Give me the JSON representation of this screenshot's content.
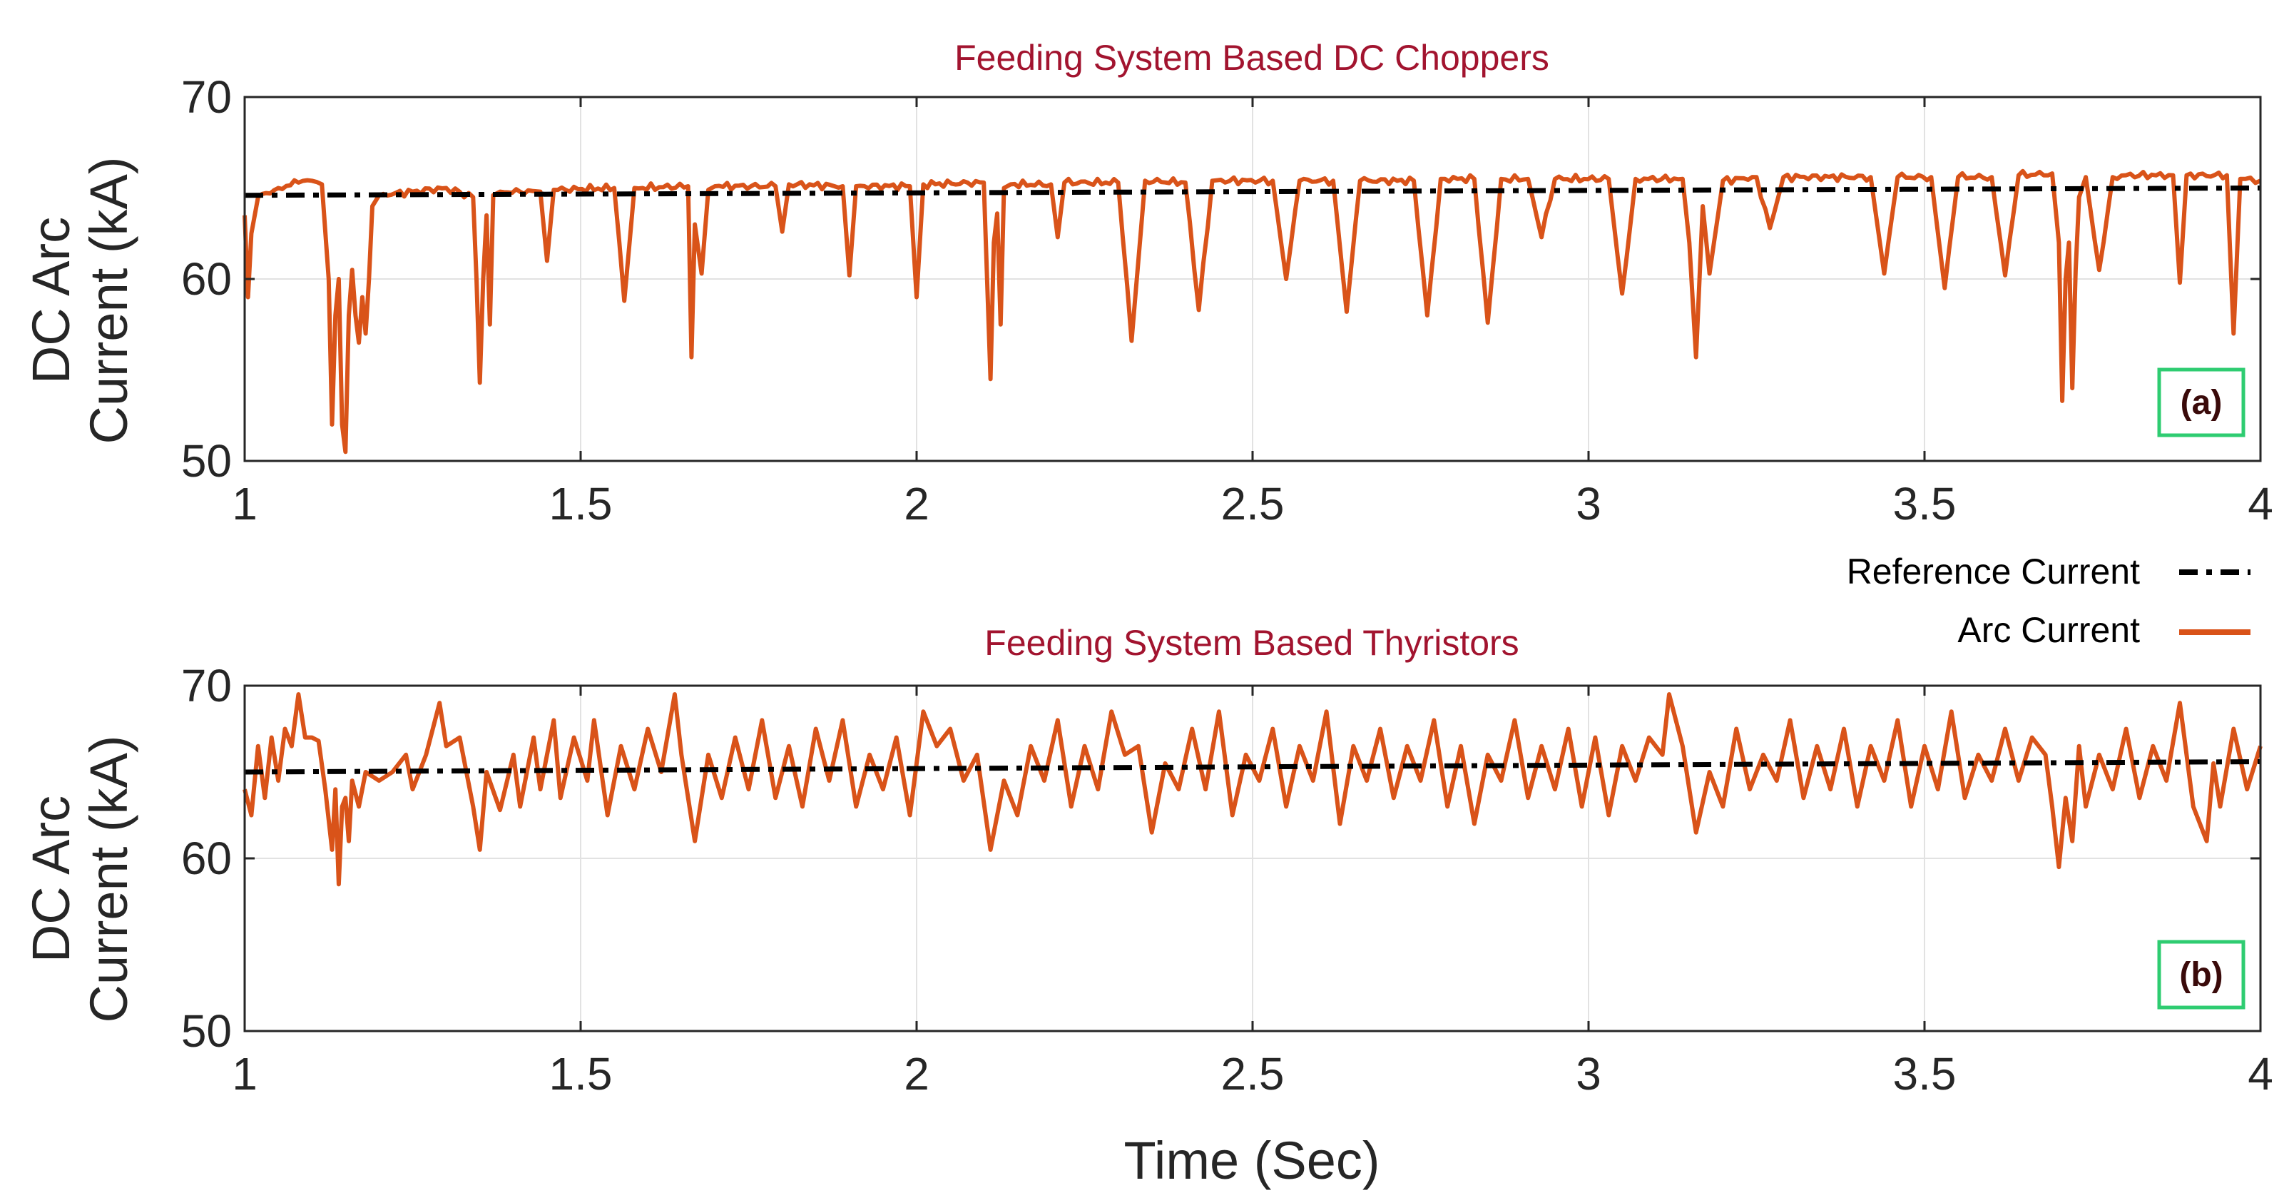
{
  "chart_data": [
    {
      "type": "line",
      "title": "Feeding System Based DC Choppers",
      "xlabel": "",
      "ylabel": "DC Arc Current (kA)",
      "ylabel_lines": [
        "DC Arc",
        "Current (kA)"
      ],
      "xlim": [
        1,
        4
      ],
      "ylim": [
        50,
        70
      ],
      "xticks": [
        1,
        1.5,
        2,
        2.5,
        3,
        3.5,
        4
      ],
      "xtick_labels": [
        "1",
        "1.5",
        "2",
        "2.5",
        "3",
        "3.5",
        "4"
      ],
      "yticks": [
        50,
        60,
        70
      ],
      "ytick_labels": [
        "50",
        "60",
        "70"
      ],
      "grid": true,
      "panel_label": "(a)",
      "series": [
        {
          "name": "Reference Current",
          "color": "#000000",
          "style": "dash-dot",
          "x": [
            1,
            4
          ],
          "y": [
            64.6,
            65.0
          ]
        },
        {
          "name": "Arc Current",
          "color": "#d95319",
          "style": "solid",
          "baseline_start": 64.5,
          "baseline_end": 65.7,
          "x": [
            1.0,
            1.005,
            1.01,
            1.02,
            1.05,
            1.08,
            1.1,
            1.115,
            1.125,
            1.13,
            1.135,
            1.14,
            1.145,
            1.15,
            1.155,
            1.16,
            1.165,
            1.17,
            1.175,
            1.18,
            1.185,
            1.19,
            1.2,
            1.25,
            1.3,
            1.34,
            1.345,
            1.35,
            1.355,
            1.36,
            1.365,
            1.37,
            1.38,
            1.44,
            1.45,
            1.46,
            1.55,
            1.565,
            1.58,
            1.66,
            1.665,
            1.67,
            1.68,
            1.69,
            1.7,
            1.79,
            1.8,
            1.81,
            1.89,
            1.9,
            1.91,
            1.99,
            2.0,
            2.01,
            2.1,
            2.11,
            2.115,
            2.12,
            2.125,
            2.13,
            2.14,
            2.2,
            2.21,
            2.22,
            2.3,
            2.32,
            2.34,
            2.4,
            2.42,
            2.44,
            2.53,
            2.55,
            2.57,
            2.62,
            2.64,
            2.66,
            2.74,
            2.76,
            2.78,
            2.83,
            2.85,
            2.87,
            2.91,
            2.93,
            2.95,
            3.03,
            3.05,
            3.07,
            3.14,
            3.15,
            3.16,
            3.17,
            3.18,
            3.2,
            3.25,
            3.27,
            3.29,
            3.42,
            3.44,
            3.46,
            3.51,
            3.53,
            3.55,
            3.6,
            3.62,
            3.64,
            3.69,
            3.7,
            3.705,
            3.71,
            3.715,
            3.72,
            3.725,
            3.73,
            3.74,
            3.76,
            3.78,
            3.8,
            3.87,
            3.88,
            3.89,
            3.95,
            3.96,
            3.97,
            4.0
          ],
          "y": [
            63.5,
            59.0,
            62.5,
            64.5,
            65.0,
            65.3,
            65.4,
            65.2,
            60.0,
            52.0,
            58.0,
            60.0,
            52.0,
            50.5,
            58.0,
            60.5,
            58.0,
            56.5,
            59.0,
            57.0,
            60.0,
            64.0,
            64.6,
            64.8,
            65.0,
            64.5,
            60.0,
            54.3,
            60.0,
            63.5,
            57.5,
            64.6,
            64.8,
            64.8,
            61.0,
            64.9,
            65.0,
            58.8,
            65.0,
            65.1,
            55.7,
            63.0,
            60.3,
            64.9,
            65.1,
            65.1,
            62.6,
            65.2,
            65.1,
            60.2,
            65.1,
            65.1,
            59.0,
            65.2,
            65.3,
            54.5,
            62.0,
            63.6,
            57.5,
            65.0,
            65.2,
            65.2,
            62.3,
            65.3,
            65.3,
            56.6,
            65.4,
            65.3,
            58.3,
            65.4,
            65.4,
            60.0,
            65.4,
            65.4,
            58.2,
            65.4,
            65.4,
            58.0,
            65.5,
            65.5,
            57.6,
            65.5,
            65.5,
            62.3,
            65.5,
            65.5,
            59.2,
            65.5,
            65.5,
            62.0,
            55.7,
            64.0,
            60.3,
            65.4,
            65.6,
            62.8,
            65.6,
            65.6,
            60.3,
            65.6,
            65.6,
            59.5,
            65.6,
            65.6,
            60.2,
            65.7,
            65.8,
            62.0,
            53.3,
            60.0,
            62.0,
            54.0,
            60.5,
            64.5,
            65.6,
            60.5,
            65.6,
            65.7,
            65.7,
            59.8,
            65.7,
            65.7,
            57.0,
            65.5,
            65.4
          ]
        }
      ]
    },
    {
      "type": "line",
      "title": "Feeding System Based Thyristors",
      "xlabel": "Time (Sec)",
      "ylabel": "DC Arc Current (kA)",
      "ylabel_lines": [
        "DC Arc",
        "Current (kA)"
      ],
      "xlim": [
        1,
        4
      ],
      "ylim": [
        50,
        70
      ],
      "xticks": [
        1,
        1.5,
        2,
        2.5,
        3,
        3.5,
        4
      ],
      "xtick_labels": [
        "1",
        "1.5",
        "2",
        "2.5",
        "3",
        "3.5",
        "4"
      ],
      "yticks": [
        50,
        60,
        70
      ],
      "ytick_labels": [
        "50",
        "60",
        "70"
      ],
      "grid": true,
      "panel_label": "(b)",
      "series": [
        {
          "name": "Reference Current",
          "color": "#000000",
          "style": "dash-dot",
          "x": [
            1,
            4
          ],
          "y": [
            65.0,
            65.6
          ]
        },
        {
          "name": "Arc Current",
          "color": "#d95319",
          "style": "solid",
          "x": [
            1.0,
            1.01,
            1.02,
            1.03,
            1.04,
            1.05,
            1.06,
            1.07,
            1.08,
            1.09,
            1.1,
            1.11,
            1.12,
            1.13,
            1.135,
            1.14,
            1.145,
            1.15,
            1.155,
            1.16,
            1.17,
            1.18,
            1.2,
            1.22,
            1.24,
            1.25,
            1.27,
            1.29,
            1.3,
            1.32,
            1.34,
            1.35,
            1.36,
            1.38,
            1.4,
            1.41,
            1.43,
            1.44,
            1.46,
            1.47,
            1.49,
            1.51,
            1.52,
            1.54,
            1.56,
            1.58,
            1.6,
            1.62,
            1.64,
            1.65,
            1.67,
            1.69,
            1.71,
            1.73,
            1.75,
            1.77,
            1.79,
            1.81,
            1.83,
            1.85,
            1.87,
            1.89,
            1.91,
            1.93,
            1.95,
            1.97,
            1.99,
            2.01,
            2.03,
            2.05,
            2.07,
            2.09,
            2.11,
            2.13,
            2.15,
            2.17,
            2.19,
            2.21,
            2.23,
            2.25,
            2.27,
            2.29,
            2.31,
            2.33,
            2.35,
            2.37,
            2.39,
            2.41,
            2.43,
            2.45,
            2.47,
            2.49,
            2.51,
            2.53,
            2.55,
            2.57,
            2.59,
            2.61,
            2.63,
            2.65,
            2.67,
            2.69,
            2.71,
            2.73,
            2.75,
            2.77,
            2.79,
            2.81,
            2.83,
            2.85,
            2.87,
            2.89,
            2.91,
            2.93,
            2.95,
            2.97,
            2.99,
            3.01,
            3.03,
            3.05,
            3.07,
            3.09,
            3.11,
            3.12,
            3.14,
            3.16,
            3.18,
            3.2,
            3.22,
            3.24,
            3.26,
            3.28,
            3.3,
            3.32,
            3.34,
            3.36,
            3.38,
            3.4,
            3.42,
            3.44,
            3.46,
            3.48,
            3.5,
            3.52,
            3.54,
            3.56,
            3.58,
            3.6,
            3.62,
            3.64,
            3.66,
            3.68,
            3.69,
            3.7,
            3.71,
            3.72,
            3.73,
            3.74,
            3.76,
            3.78,
            3.8,
            3.82,
            3.84,
            3.86,
            3.88,
            3.9,
            3.92,
            3.93,
            3.94,
            3.96,
            3.98,
            4.0
          ],
          "y": [
            64.0,
            62.5,
            66.5,
            63.5,
            67.0,
            64.5,
            67.5,
            66.5,
            69.5,
            67.0,
            67.0,
            66.8,
            64.0,
            60.5,
            64.0,
            58.5,
            63.0,
            63.5,
            61.0,
            64.5,
            63.0,
            65.0,
            64.5,
            65.0,
            66.0,
            64.0,
            66.0,
            69.0,
            66.5,
            67.0,
            63.0,
            60.5,
            65.0,
            62.8,
            66.0,
            63.0,
            67.0,
            64.0,
            68.0,
            63.5,
            67.0,
            64.5,
            68.0,
            62.5,
            66.5,
            64.0,
            67.5,
            65.0,
            69.5,
            66.0,
            61.0,
            66.0,
            63.5,
            67.0,
            64.0,
            68.0,
            63.5,
            66.5,
            63.0,
            67.5,
            64.5,
            68.0,
            63.0,
            66.0,
            64.0,
            67.0,
            62.5,
            68.5,
            66.5,
            67.5,
            64.5,
            66.0,
            60.5,
            64.5,
            62.5,
            66.5,
            64.5,
            68.0,
            63.0,
            66.5,
            64.0,
            68.5,
            66.0,
            66.5,
            61.5,
            65.5,
            64.0,
            67.5,
            64.0,
            68.5,
            62.5,
            66.0,
            64.5,
            67.5,
            63.0,
            66.5,
            64.5,
            68.5,
            62.0,
            66.5,
            64.5,
            67.5,
            63.5,
            66.5,
            64.5,
            68.0,
            63.0,
            66.5,
            62.0,
            66.0,
            64.5,
            68.0,
            63.5,
            66.5,
            64.0,
            67.5,
            63.0,
            67.0,
            62.5,
            66.5,
            64.5,
            67.0,
            66.0,
            69.5,
            66.5,
            61.5,
            65.0,
            63.0,
            67.5,
            64.0,
            66.0,
            64.5,
            68.0,
            63.5,
            66.5,
            64.0,
            67.5,
            63.0,
            66.5,
            64.5,
            68.0,
            63.0,
            66.5,
            64.0,
            68.5,
            63.5,
            66.0,
            64.5,
            67.5,
            64.5,
            67.0,
            66.0,
            63.0,
            59.5,
            63.5,
            61.0,
            66.5,
            63.0,
            66.0,
            64.0,
            67.5,
            63.5,
            66.5,
            64.5,
            69.0,
            63.0,
            61.0,
            65.5,
            63.0,
            67.5,
            64.0,
            66.5
          ]
        }
      ]
    }
  ],
  "legend": {
    "entries": [
      {
        "label": "Reference Current",
        "color": "#000000",
        "style": "dash-dot"
      },
      {
        "label": "Arc Current",
        "color": "#d95319",
        "style": "solid"
      }
    ]
  }
}
